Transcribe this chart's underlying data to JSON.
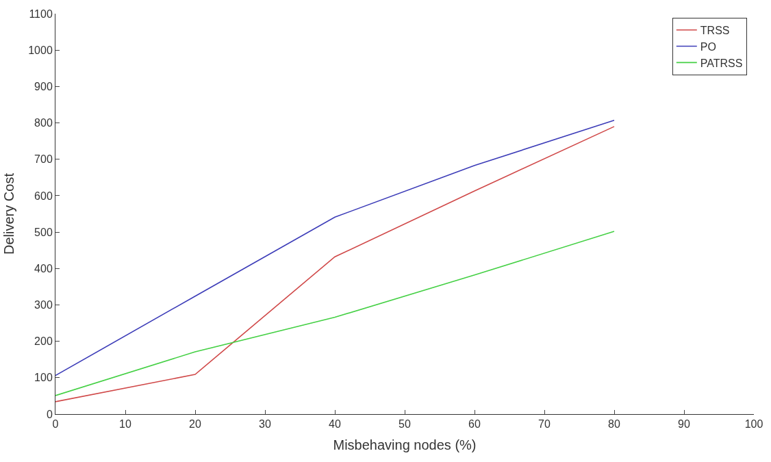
{
  "chart_data": {
    "type": "line",
    "xlabel": "Misbehaving nodes (%)",
    "ylabel": "Delivery Cost",
    "x": [
      0,
      20,
      40,
      60,
      80
    ],
    "series": [
      {
        "name": "TRSS",
        "color": "#d04848",
        "values": [
          34,
          109,
          432,
          613,
          790
        ]
      },
      {
        "name": "PO",
        "color": "#3c3cb8",
        "values": [
          106,
          324,
          541,
          683,
          807
        ]
      },
      {
        "name": "PATRSS",
        "color": "#44d044",
        "values": [
          51,
          171,
          266,
          382,
          502
        ]
      }
    ],
    "xlim": [
      0,
      100
    ],
    "xticks": [
      0,
      10,
      20,
      30,
      40,
      50,
      60,
      70,
      80,
      90,
      100
    ],
    "ylim": [
      0,
      1100
    ],
    "yticks": [
      0,
      100,
      200,
      300,
      400,
      500,
      600,
      700,
      800,
      900,
      1000,
      1100
    ],
    "legend": "top right",
    "marker": "none",
    "line_style": "solid"
  }
}
